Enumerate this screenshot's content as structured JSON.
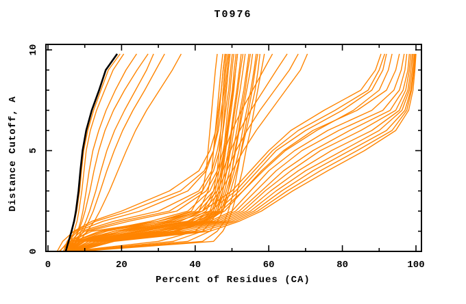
{
  "window": {
    "background": "#ffffff"
  },
  "chart_data": {
    "type": "line",
    "title": "T0976",
    "xlabel": "Percent of Residues (CA)",
    "ylabel": "Distance Cutoff, A",
    "xlim": [
      0,
      100
    ],
    "ylim": [
      0,
      10
    ],
    "grid": false,
    "legend": "none",
    "axis_color": "#000000",
    "model_color": "#ff8400",
    "reference_color": "#000000",
    "x_major_ticks": [
      0,
      20,
      40,
      60,
      80,
      100
    ],
    "x_minor_ticks": [
      10,
      30,
      50,
      70,
      90
    ],
    "y_major_ticks": [
      0,
      5,
      10
    ],
    "y_minor_ticks": [
      1,
      2,
      3,
      4,
      6,
      7,
      8,
      9
    ],
    "tick_labels_x": [
      "0",
      "20",
      "40",
      "60",
      "80",
      "100"
    ],
    "tick_labels_y": [
      "0",
      "5",
      "10"
    ],
    "cutoffs": [
      0,
      0.5,
      1,
      1.5,
      2,
      3,
      4,
      5,
      6,
      7,
      8,
      9,
      9.8
    ],
    "reference_series": {
      "name": "reference-model-black",
      "values": [
        4.8,
        5.6,
        6.4,
        7.1,
        7.6,
        8.3,
        8.8,
        9.4,
        10.4,
        11.9,
        13.9,
        15.7,
        18.8
      ]
    },
    "model_series": [
      [
        4.2,
        5.5,
        6.5,
        7.2,
        7.8,
        8.6,
        9.1,
        9.7,
        10.8,
        12.4,
        14.4,
        16.4,
        19.6
      ],
      [
        5.0,
        6.2,
        7.1,
        7.9,
        8.4,
        9.2,
        9.8,
        10.4,
        11.5,
        13.2,
        15.4,
        17.7,
        20.6
      ],
      [
        5.5,
        7.0,
        8.1,
        8.9,
        9.5,
        10.4,
        11.2,
        12.2,
        13.8,
        15.8,
        18.3,
        21.2,
        24.1
      ],
      [
        5.2,
        6.8,
        8.3,
        9.3,
        10.1,
        11.4,
        12.5,
        13.8,
        15.5,
        17.8,
        20.8,
        24.2,
        27.2
      ],
      [
        6.0,
        7.6,
        9.1,
        10.3,
        11.3,
        13.0,
        14.4,
        16.0,
        18.1,
        20.8,
        23.8,
        26.8,
        28.7
      ],
      [
        5.8,
        7.9,
        9.6,
        11.1,
        12.3,
        14.2,
        16.0,
        18.0,
        20.3,
        23.1,
        26.3,
        29.3,
        31.7
      ],
      [
        6.5,
        8.6,
        10.6,
        12.6,
        14.1,
        16.7,
        19.0,
        21.3,
        23.8,
        26.8,
        30.3,
        33.8,
        36.2
      ],
      [
        3.0,
        6.0,
        12,
        30,
        39,
        42,
        43,
        43.5,
        44,
        44.5,
        45,
        45.5,
        46
      ],
      [
        4.5,
        7.0,
        15,
        33,
        41,
        43.5,
        44.5,
        45,
        45.5,
        46,
        46.5,
        47,
        47.5
      ],
      [
        5.0,
        8.0,
        18,
        36,
        42,
        45,
        46,
        46.5,
        47,
        47.3,
        47.6,
        48,
        48.5
      ],
      [
        5.0,
        7.5,
        20,
        38,
        43,
        45.5,
        46.5,
        47,
        47.5,
        48,
        48.5,
        49,
        49.5
      ],
      [
        5.5,
        8.5,
        22,
        39,
        44,
        46,
        47,
        47.8,
        48.3,
        48.8,
        49.5,
        50,
        50.5
      ],
      [
        5.5,
        9.0,
        24,
        40,
        44.5,
        46.5,
        47.5,
        48.3,
        49,
        49.8,
        50.5,
        51,
        51.5
      ],
      [
        6.0,
        9.5,
        26,
        41,
        45,
        47,
        48,
        49,
        49.8,
        50.5,
        51.3,
        52,
        52.5
      ],
      [
        6.0,
        10,
        28,
        41.5,
        45.5,
        47.5,
        48.6,
        49.6,
        50.5,
        51.3,
        52.2,
        53,
        53.6
      ],
      [
        6.5,
        11,
        30,
        42,
        46,
        48,
        49.3,
        50.3,
        51.3,
        52.2,
        53.2,
        54,
        54.6
      ],
      [
        6.5,
        12,
        32,
        42.5,
        46.5,
        48.5,
        50,
        51,
        52,
        53,
        54,
        55,
        55.6
      ],
      [
        7.0,
        13,
        34,
        43,
        47,
        49,
        50.6,
        51.9,
        52.9,
        54,
        55.1,
        56,
        56.6
      ],
      [
        7.0,
        14,
        35,
        43.5,
        47.5,
        49.6,
        51.2,
        52.6,
        53.9,
        55.1,
        56.3,
        57.1,
        57.6
      ],
      [
        3.2,
        5.5,
        8,
        15,
        25,
        38,
        43,
        45,
        46,
        46.6,
        47.1,
        47.6,
        48.1
      ],
      [
        4.5,
        6.0,
        9,
        18,
        30,
        41,
        44.5,
        46,
        47,
        47.6,
        48.2,
        48.7,
        49.2
      ],
      [
        5.0,
        6.5,
        10,
        20,
        33,
        42,
        45,
        46.6,
        47.6,
        48.3,
        49.1,
        49.6,
        50.1
      ],
      [
        5.5,
        7.0,
        11,
        22,
        35,
        43,
        46,
        47.6,
        48.6,
        49.3,
        50.1,
        50.6,
        51.1
      ],
      [
        2.5,
        4.0,
        7,
        12,
        20,
        33,
        41,
        44,
        45.6,
        46.3,
        47.1,
        47.6,
        48.2
      ],
      [
        4.2,
        5.2,
        7.5,
        13,
        22,
        36,
        42.5,
        45,
        46.3,
        47.1,
        47.9,
        48.3,
        48.9
      ],
      [
        5.0,
        7.0,
        14,
        28,
        38,
        44,
        46.5,
        48,
        50,
        52.6,
        55.6,
        58.6,
        61
      ],
      [
        5.5,
        8.0,
        16,
        30,
        40,
        45,
        47.5,
        49.6,
        52.1,
        55.1,
        58.6,
        62.1,
        65
      ],
      [
        6.0,
        9.0,
        18,
        32,
        41,
        46,
        48.6,
        51.1,
        54.1,
        57.6,
        61.6,
        65.6,
        68
      ],
      [
        6.0,
        10,
        20,
        34,
        42,
        47,
        50.1,
        53.1,
        56.6,
        60.6,
        64.6,
        68.6,
        70.5
      ],
      [
        5.0,
        9,
        25,
        42,
        48,
        53,
        58,
        64,
        72,
        84,
        92,
        94.5,
        95.5
      ],
      [
        5.5,
        10,
        28,
        44,
        50,
        55,
        60,
        67,
        76,
        88,
        94,
        96,
        96.8
      ],
      [
        6.0,
        11,
        30,
        45,
        51,
        56.5,
        62,
        69,
        79,
        91,
        95.5,
        97,
        97.5
      ],
      [
        6.0,
        12,
        32,
        46,
        52,
        58,
        64,
        72,
        82,
        93,
        96.5,
        97.8,
        98.2
      ],
      [
        6.5,
        13,
        34,
        47,
        53,
        59,
        66,
        74,
        85,
        94.5,
        97.2,
        98.2,
        98.6
      ],
      [
        6.5,
        14,
        36,
        48,
        54,
        60.5,
        68,
        77,
        88,
        95.5,
        97.8,
        98.6,
        99
      ],
      [
        7.0,
        15,
        38,
        49,
        55,
        62,
        70,
        80,
        90,
        96.2,
        98.2,
        99,
        99.3
      ],
      [
        7.0,
        16,
        40,
        50,
        56,
        63.5,
        72,
        82,
        92,
        97,
        98.6,
        99.3,
        99.6
      ],
      [
        5.0,
        8,
        20,
        38,
        46,
        52,
        57,
        62,
        70,
        80,
        88,
        91,
        92
      ],
      [
        5.5,
        8.5,
        22,
        40,
        47,
        53,
        58.5,
        64.5,
        73,
        83,
        90,
        92.5,
        93.5
      ],
      [
        7.5,
        17,
        42,
        51,
        57,
        65,
        74,
        84,
        93.5,
        97.5,
        98.8,
        99.5,
        99.8
      ],
      [
        8.0,
        18,
        44,
        52,
        58,
        66.5,
        76,
        86,
        94.5,
        98,
        99.2,
        99.7,
        100
      ],
      [
        4.5,
        7,
        15,
        30,
        42,
        50,
        55,
        60,
        66,
        75,
        85,
        89,
        90.5
      ],
      [
        5.0,
        7.5,
        18,
        35,
        44,
        51,
        56,
        61,
        68,
        78,
        87,
        90,
        91.5
      ],
      [
        6.0,
        30,
        40,
        43,
        45,
        46.5,
        47.3,
        48,
        48.8,
        49.5,
        50.3,
        51,
        51.5
      ],
      [
        7.0,
        34,
        42,
        44.5,
        46,
        47.5,
        48.5,
        49.3,
        50,
        50.8,
        51.6,
        52.3,
        53
      ],
      [
        7.5,
        38,
        44,
        46,
        47.5,
        49,
        50,
        50.8,
        51.8,
        52.6,
        53.6,
        54.3,
        55
      ],
      [
        8.0,
        42,
        46,
        48,
        49,
        50.5,
        51.5,
        52.5,
        53.5,
        54.5,
        55.5,
        56.3,
        57
      ],
      [
        8.5,
        45,
        47.5,
        49,
        50,
        51.5,
        52.8,
        53.8,
        55,
        56,
        57,
        58,
        58.8
      ]
    ]
  }
}
